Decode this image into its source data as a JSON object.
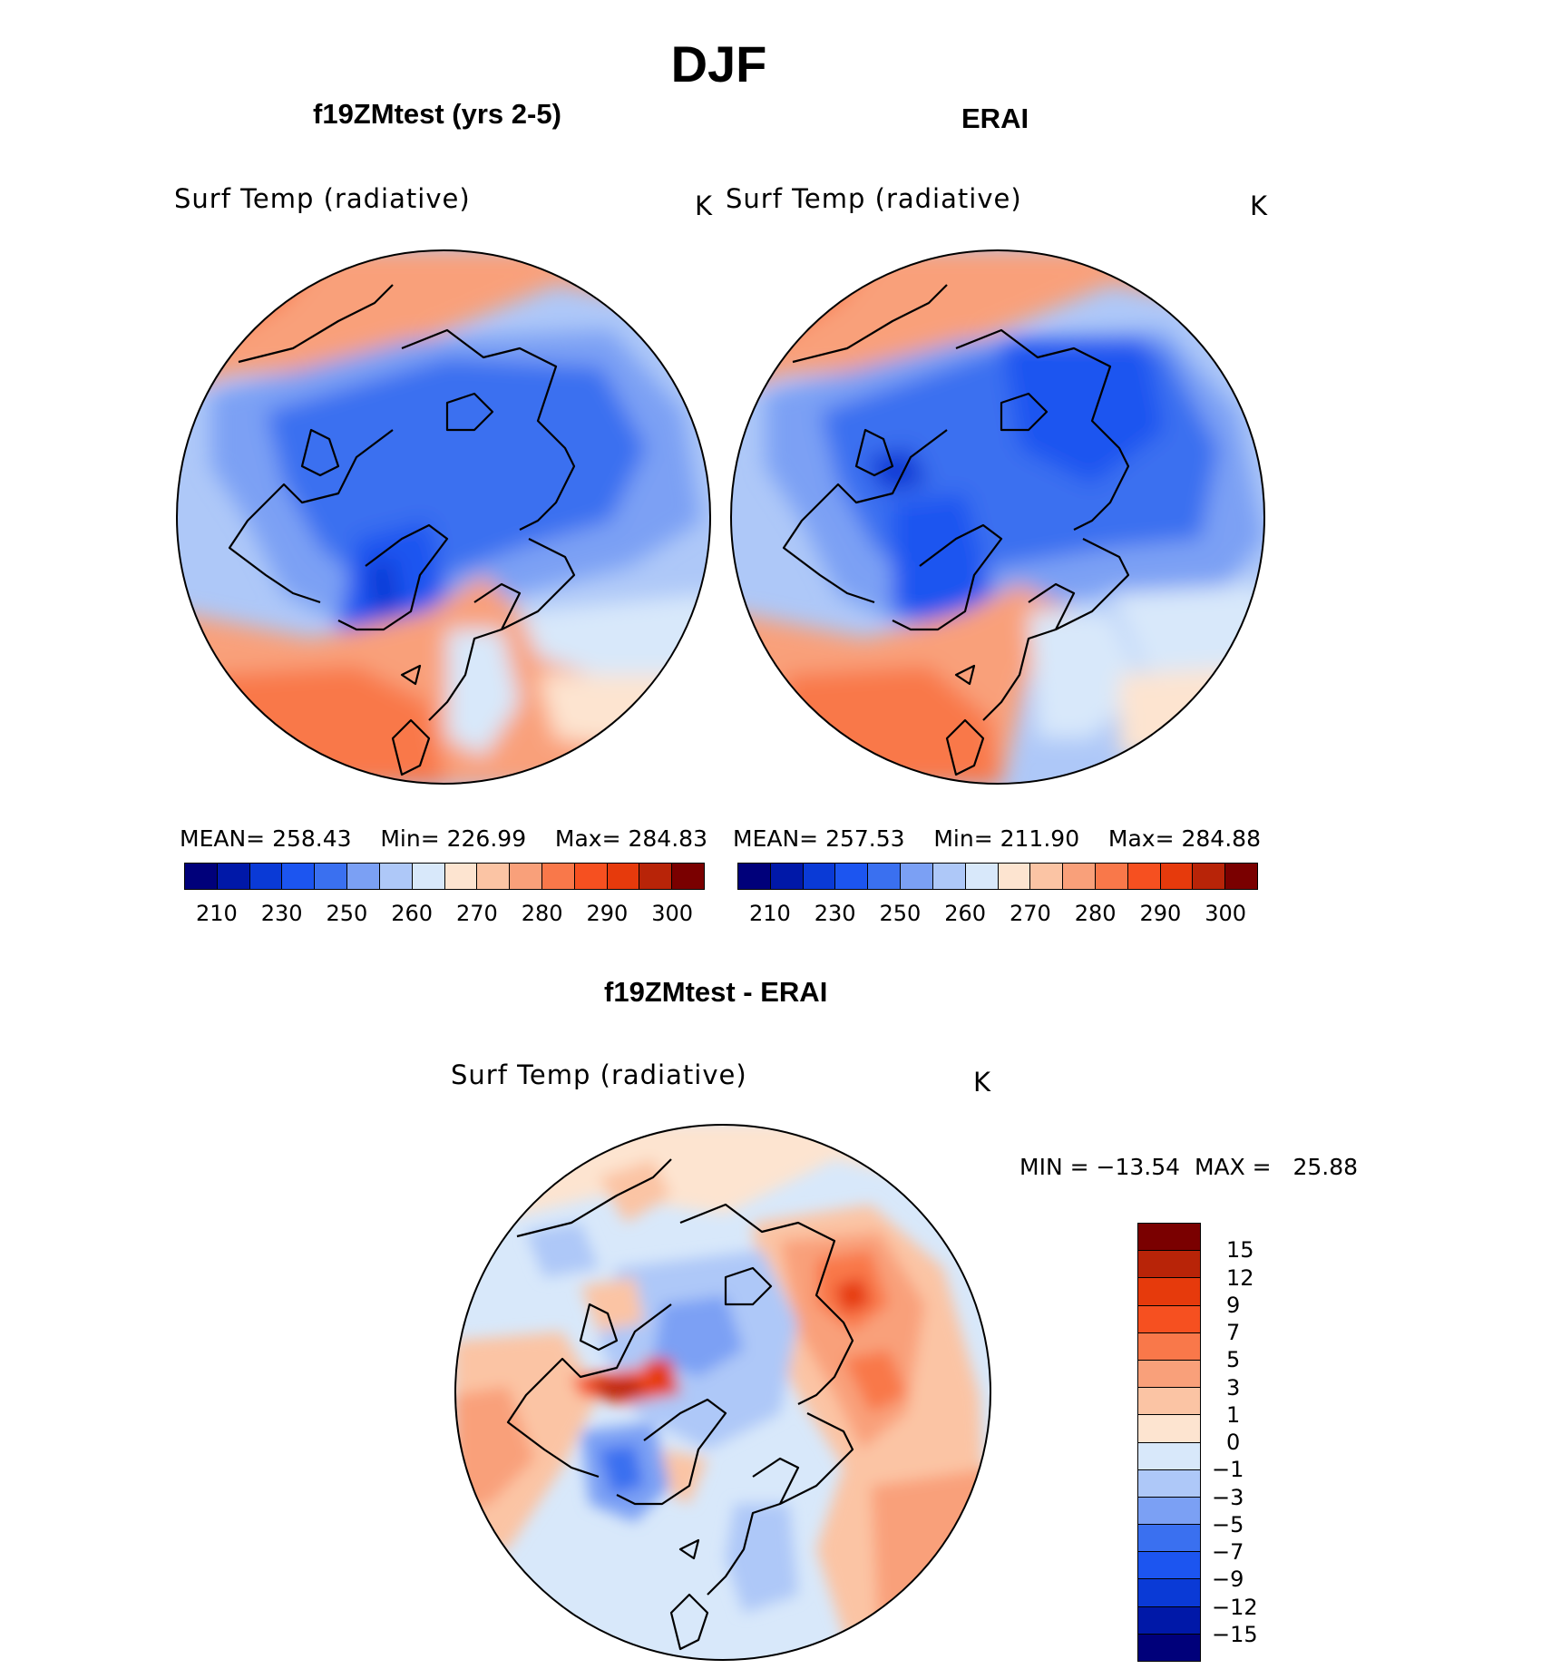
{
  "title": "DJF",
  "panels": [
    {
      "case_title": "f19ZMtest (yrs 2-5)",
      "variable": "Surf Temp (radiative)",
      "units": "K",
      "stats": {
        "mean_label": "MEAN=",
        "mean": "258.43",
        "min_label": "Min=",
        "min": "226.99",
        "max_label": "Max=",
        "max": "284.83"
      }
    },
    {
      "case_title": "ERAI",
      "variable": "Surf Temp (radiative)",
      "units": "K",
      "stats": {
        "mean_label": "MEAN=",
        "mean": "257.53",
        "min_label": "Min=",
        "min": "211.90",
        "max_label": "Max=",
        "max": "284.88"
      }
    }
  ],
  "abs_colorbar": {
    "tick_labels": [
      "210",
      "230",
      "250",
      "260",
      "270",
      "280",
      "290",
      "300"
    ],
    "colors": [
      "#00007a",
      "#0018a8",
      "#0a3ad6",
      "#1c55f0",
      "#3a70f0",
      "#7ba0f4",
      "#aec8f8",
      "#d8e8fa",
      "#fde4d0",
      "#fbc4a4",
      "#f9a07a",
      "#f9784a",
      "#f65020",
      "#e63a0c",
      "#b82408",
      "#7a0000"
    ]
  },
  "diff_panel": {
    "title": "f19ZMtest - ERAI",
    "variable": "Surf Temp (radiative)",
    "units": "K",
    "minmax": {
      "min_label": "MIN =",
      "min": "−13.54",
      "max_label": "MAX =",
      "max": "25.88"
    },
    "colorbar": {
      "tick_labels": [
        "15",
        "12",
        "9",
        "7",
        "5",
        "3",
        "1",
        "0",
        "−1",
        "−3",
        "−5",
        "−7",
        "−9",
        "−12",
        "−15"
      ],
      "colors": [
        "#7a0000",
        "#b82408",
        "#e63a0c",
        "#f65020",
        "#f9784a",
        "#f9a07a",
        "#fbc4a4",
        "#fde4d0",
        "#d8e8fa",
        "#aec8f8",
        "#7ba0f4",
        "#3a70f0",
        "#1c55f0",
        "#0a3ad6",
        "#0018a8",
        "#00007a"
      ]
    }
  }
}
